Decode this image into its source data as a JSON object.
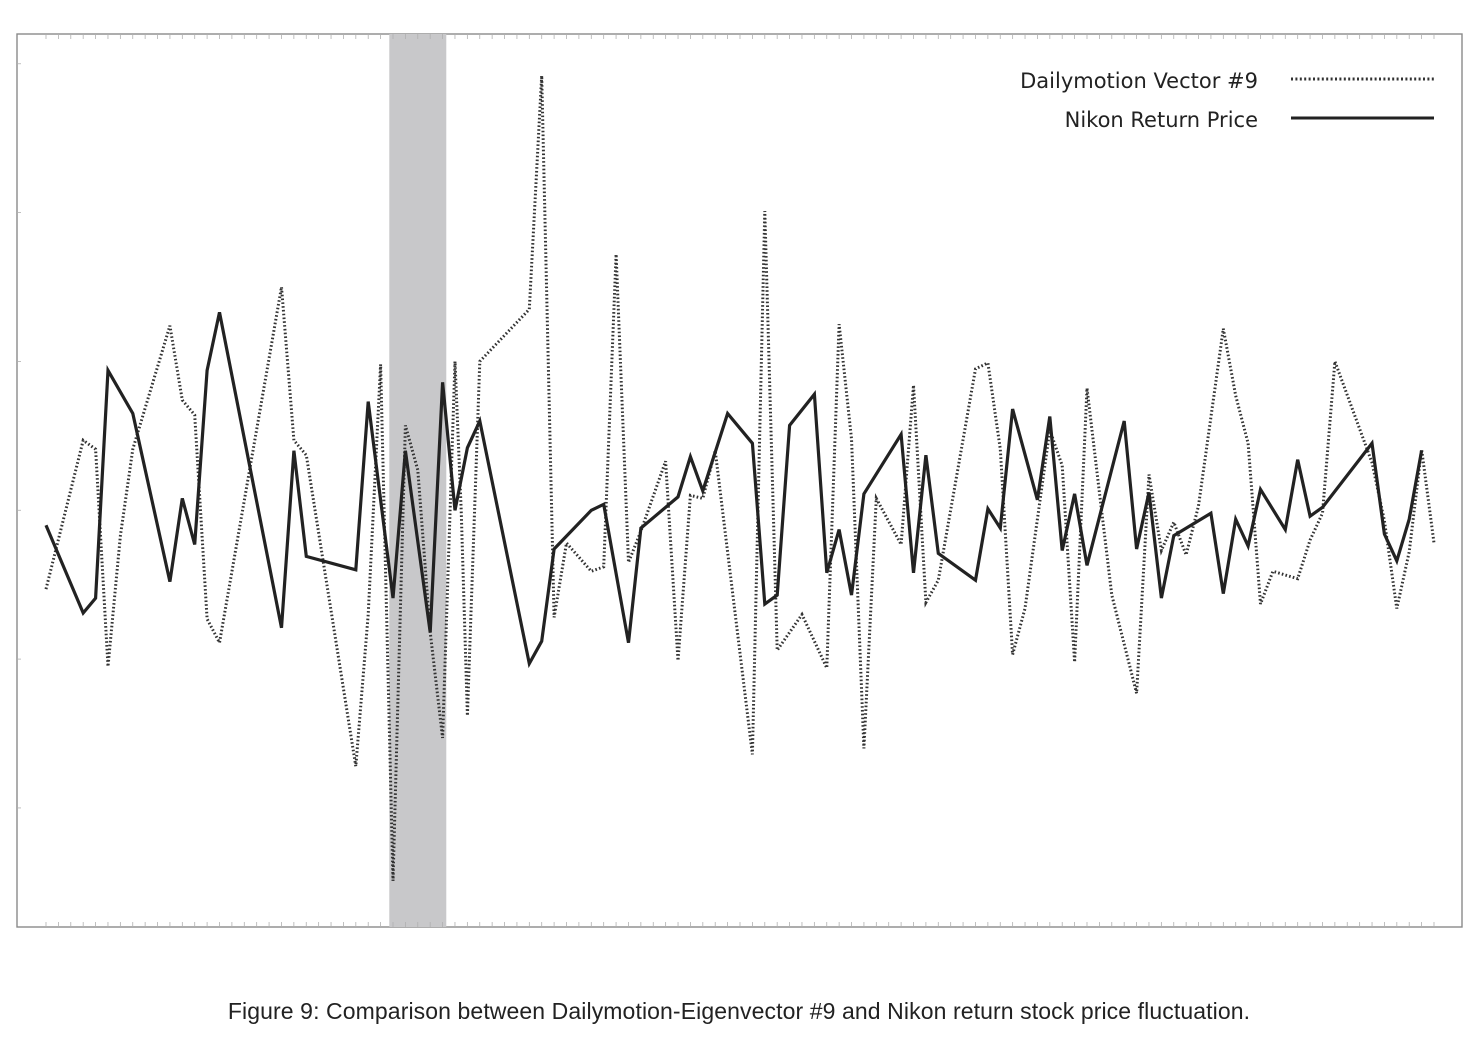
{
  "caption": "Figure 9:  Comparison between Dailymotion-Eigenvector #9 and Nikon return stock price fluctuation.",
  "chart_data": {
    "type": "line",
    "title": "",
    "xlabel": "",
    "ylabel": "",
    "ylim": [
      -2.8,
      3.2
    ],
    "grid": false,
    "legend_position": "top-right",
    "highlight_band": {
      "x_start": 27.7,
      "x_end": 32.3,
      "color": "#c8c8ca"
    },
    "legend": [
      {
        "label": "Dailymotion Vector  #9",
        "style": "dotted"
      },
      {
        "label": "Nikon Return Price",
        "style": "solid"
      }
    ],
    "series": [
      {
        "name": "Dailymotion Vector  #9",
        "style": "dotted",
        "color": "#333333",
        "points": [
          [
            0,
            -0.53
          ],
          [
            3,
            0.47
          ],
          [
            4,
            0.41
          ],
          [
            5,
            -1.05
          ],
          [
            6,
            -0.17
          ],
          [
            7,
            0.41
          ],
          [
            10,
            1.24
          ],
          [
            11,
            0.74
          ],
          [
            12,
            0.64
          ],
          [
            13,
            -0.73
          ],
          [
            14,
            -0.89
          ],
          [
            19,
            1.5
          ],
          [
            20,
            0.47
          ],
          [
            21,
            0.37
          ],
          [
            25,
            -1.72
          ],
          [
            26,
            -0.7
          ],
          [
            27,
            0.98
          ],
          [
            28,
            -2.49
          ],
          [
            29,
            0.57
          ],
          [
            30,
            0.27
          ],
          [
            31,
            -0.82
          ],
          [
            32,
            -1.53
          ],
          [
            33,
            1.0
          ],
          [
            33.5,
            0.0
          ],
          [
            34,
            -1.38
          ],
          [
            35,
            1.0
          ],
          [
            39,
            1.35
          ],
          [
            40,
            2.92
          ],
          [
            41,
            -0.72
          ],
          [
            42,
            -0.22
          ],
          [
            44,
            -0.41
          ],
          [
            45,
            -0.38
          ],
          [
            46,
            1.72
          ],
          [
            47,
            -0.35
          ],
          [
            48,
            -0.14
          ],
          [
            50,
            0.33
          ],
          [
            51,
            -1.01
          ],
          [
            52,
            0.1
          ],
          [
            53,
            0.08
          ],
          [
            54,
            0.4
          ],
          [
            57,
            -1.64
          ],
          [
            58,
            2.01
          ],
          [
            59,
            -0.94
          ],
          [
            61,
            -0.7
          ],
          [
            63,
            -1.06
          ],
          [
            64,
            1.25
          ],
          [
            65,
            0.48
          ],
          [
            66,
            -1.6
          ],
          [
            67,
            0.08
          ],
          [
            69,
            -0.23
          ],
          [
            70,
            0.84
          ],
          [
            71,
            -0.62
          ],
          [
            72,
            -0.47
          ],
          [
            75,
            0.95
          ],
          [
            76,
            0.99
          ],
          [
            77,
            0.41
          ],
          [
            78,
            -0.97
          ],
          [
            79,
            -0.66
          ],
          [
            81,
            0.54
          ],
          [
            82,
            0.3
          ],
          [
            83,
            -1.02
          ],
          [
            84,
            0.82
          ],
          [
            85,
            0.12
          ],
          [
            86,
            -0.57
          ],
          [
            88,
            -1.23
          ],
          [
            89,
            0.24
          ],
          [
            90,
            -0.27
          ],
          [
            91,
            -0.08
          ],
          [
            92,
            -0.3
          ],
          [
            93,
            0.03
          ],
          [
            95,
            1.22
          ],
          [
            96,
            0.77
          ],
          [
            97,
            0.45
          ],
          [
            98,
            -0.63
          ],
          [
            99,
            -0.41
          ],
          [
            101,
            -0.46
          ],
          [
            102,
            -0.2
          ],
          [
            103,
            -0.02
          ],
          [
            104,
            1.0
          ],
          [
            107,
            0.32
          ],
          [
            108,
            -0.07
          ],
          [
            109,
            -0.66
          ],
          [
            110,
            -0.28
          ],
          [
            111,
            0.41
          ],
          [
            112,
            -0.22
          ]
        ]
      },
      {
        "name": "Nikon Return Price",
        "style": "solid",
        "color": "#222222",
        "points": [
          [
            0,
            -0.1
          ],
          [
            3,
            -0.69
          ],
          [
            4,
            -0.59
          ],
          [
            5,
            0.94
          ],
          [
            7,
            0.65
          ],
          [
            10,
            -0.48
          ],
          [
            11,
            0.08
          ],
          [
            12,
            -0.23
          ],
          [
            13,
            0.94
          ],
          [
            14,
            1.33
          ],
          [
            19,
            -0.79
          ],
          [
            20,
            0.4
          ],
          [
            21,
            -0.31
          ],
          [
            25,
            -0.4
          ],
          [
            26,
            0.73
          ],
          [
            28,
            -0.59
          ],
          [
            29,
            0.4
          ],
          [
            31,
            -0.82
          ],
          [
            32,
            0.86
          ],
          [
            33,
            0.0
          ],
          [
            34,
            0.42
          ],
          [
            35,
            0.6
          ],
          [
            39,
            -1.03
          ],
          [
            40,
            -0.88
          ],
          [
            41,
            -0.26
          ],
          [
            44,
            0.0
          ],
          [
            45,
            0.04
          ],
          [
            47,
            -0.89
          ],
          [
            48,
            -0.12
          ],
          [
            49,
            -0.05
          ],
          [
            51,
            0.09
          ],
          [
            52,
            0.36
          ],
          [
            53,
            0.13
          ],
          [
            55,
            0.65
          ],
          [
            57,
            0.45
          ],
          [
            58,
            -0.63
          ],
          [
            59,
            -0.57
          ],
          [
            60,
            0.57
          ],
          [
            62,
            0.78
          ],
          [
            63,
            -0.42
          ],
          [
            64,
            -0.13
          ],
          [
            65,
            -0.57
          ],
          [
            66,
            0.11
          ],
          [
            69,
            0.51
          ],
          [
            70,
            -0.42
          ],
          [
            71,
            0.37
          ],
          [
            72,
            -0.29
          ],
          [
            75,
            -0.47
          ],
          [
            76,
            0.01
          ],
          [
            77,
            -0.12
          ],
          [
            78,
            0.68
          ],
          [
            80,
            0.07
          ],
          [
            81,
            0.63
          ],
          [
            82,
            -0.27
          ],
          [
            83,
            0.11
          ],
          [
            84,
            -0.37
          ],
          [
            87,
            0.6
          ],
          [
            88,
            -0.26
          ],
          [
            89,
            0.12
          ],
          [
            90,
            -0.59
          ],
          [
            91,
            -0.17
          ],
          [
            94,
            -0.02
          ],
          [
            95,
            -0.56
          ],
          [
            96,
            -0.06
          ],
          [
            97,
            -0.24
          ],
          [
            98,
            0.14
          ],
          [
            100,
            -0.13
          ],
          [
            101,
            0.34
          ],
          [
            102,
            -0.04
          ],
          [
            103,
            0.02
          ],
          [
            107,
            0.45
          ],
          [
            108,
            -0.16
          ],
          [
            109,
            -0.34
          ],
          [
            110,
            -0.06
          ],
          [
            111,
            0.4
          ]
        ]
      }
    ]
  }
}
